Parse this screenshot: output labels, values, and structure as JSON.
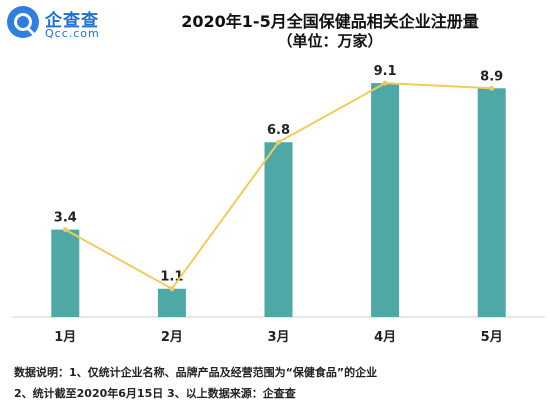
{
  "logo": {
    "name": "企查查",
    "domain": "Qcc.com"
  },
  "chart_data": {
    "type": "bar",
    "title": "2020年1-5月全国保健品相关企业注册量",
    "subtitle": "（单位：万家）",
    "categories": [
      "1月",
      "2月",
      "3月",
      "4月",
      "5月"
    ],
    "values": [
      3.4,
      1.1,
      6.8,
      9.1,
      8.9
    ],
    "value_labels": [
      "3.4",
      "1.1",
      "6.8",
      "9.1",
      "8.9"
    ],
    "overlay": "line",
    "ylim": [
      0,
      10
    ],
    "grid": false,
    "colors": {
      "bar": "#4ea9a6",
      "line": "#f2cc5b",
      "axis": "#cfcfcf"
    }
  },
  "footnotes": [
    "数据说明：1、仅统计企业名称、品牌产品及经营范围为“保健食品”的企业",
    "2、统计截至2020年6月15日    3、以上数据来源：企查查"
  ]
}
